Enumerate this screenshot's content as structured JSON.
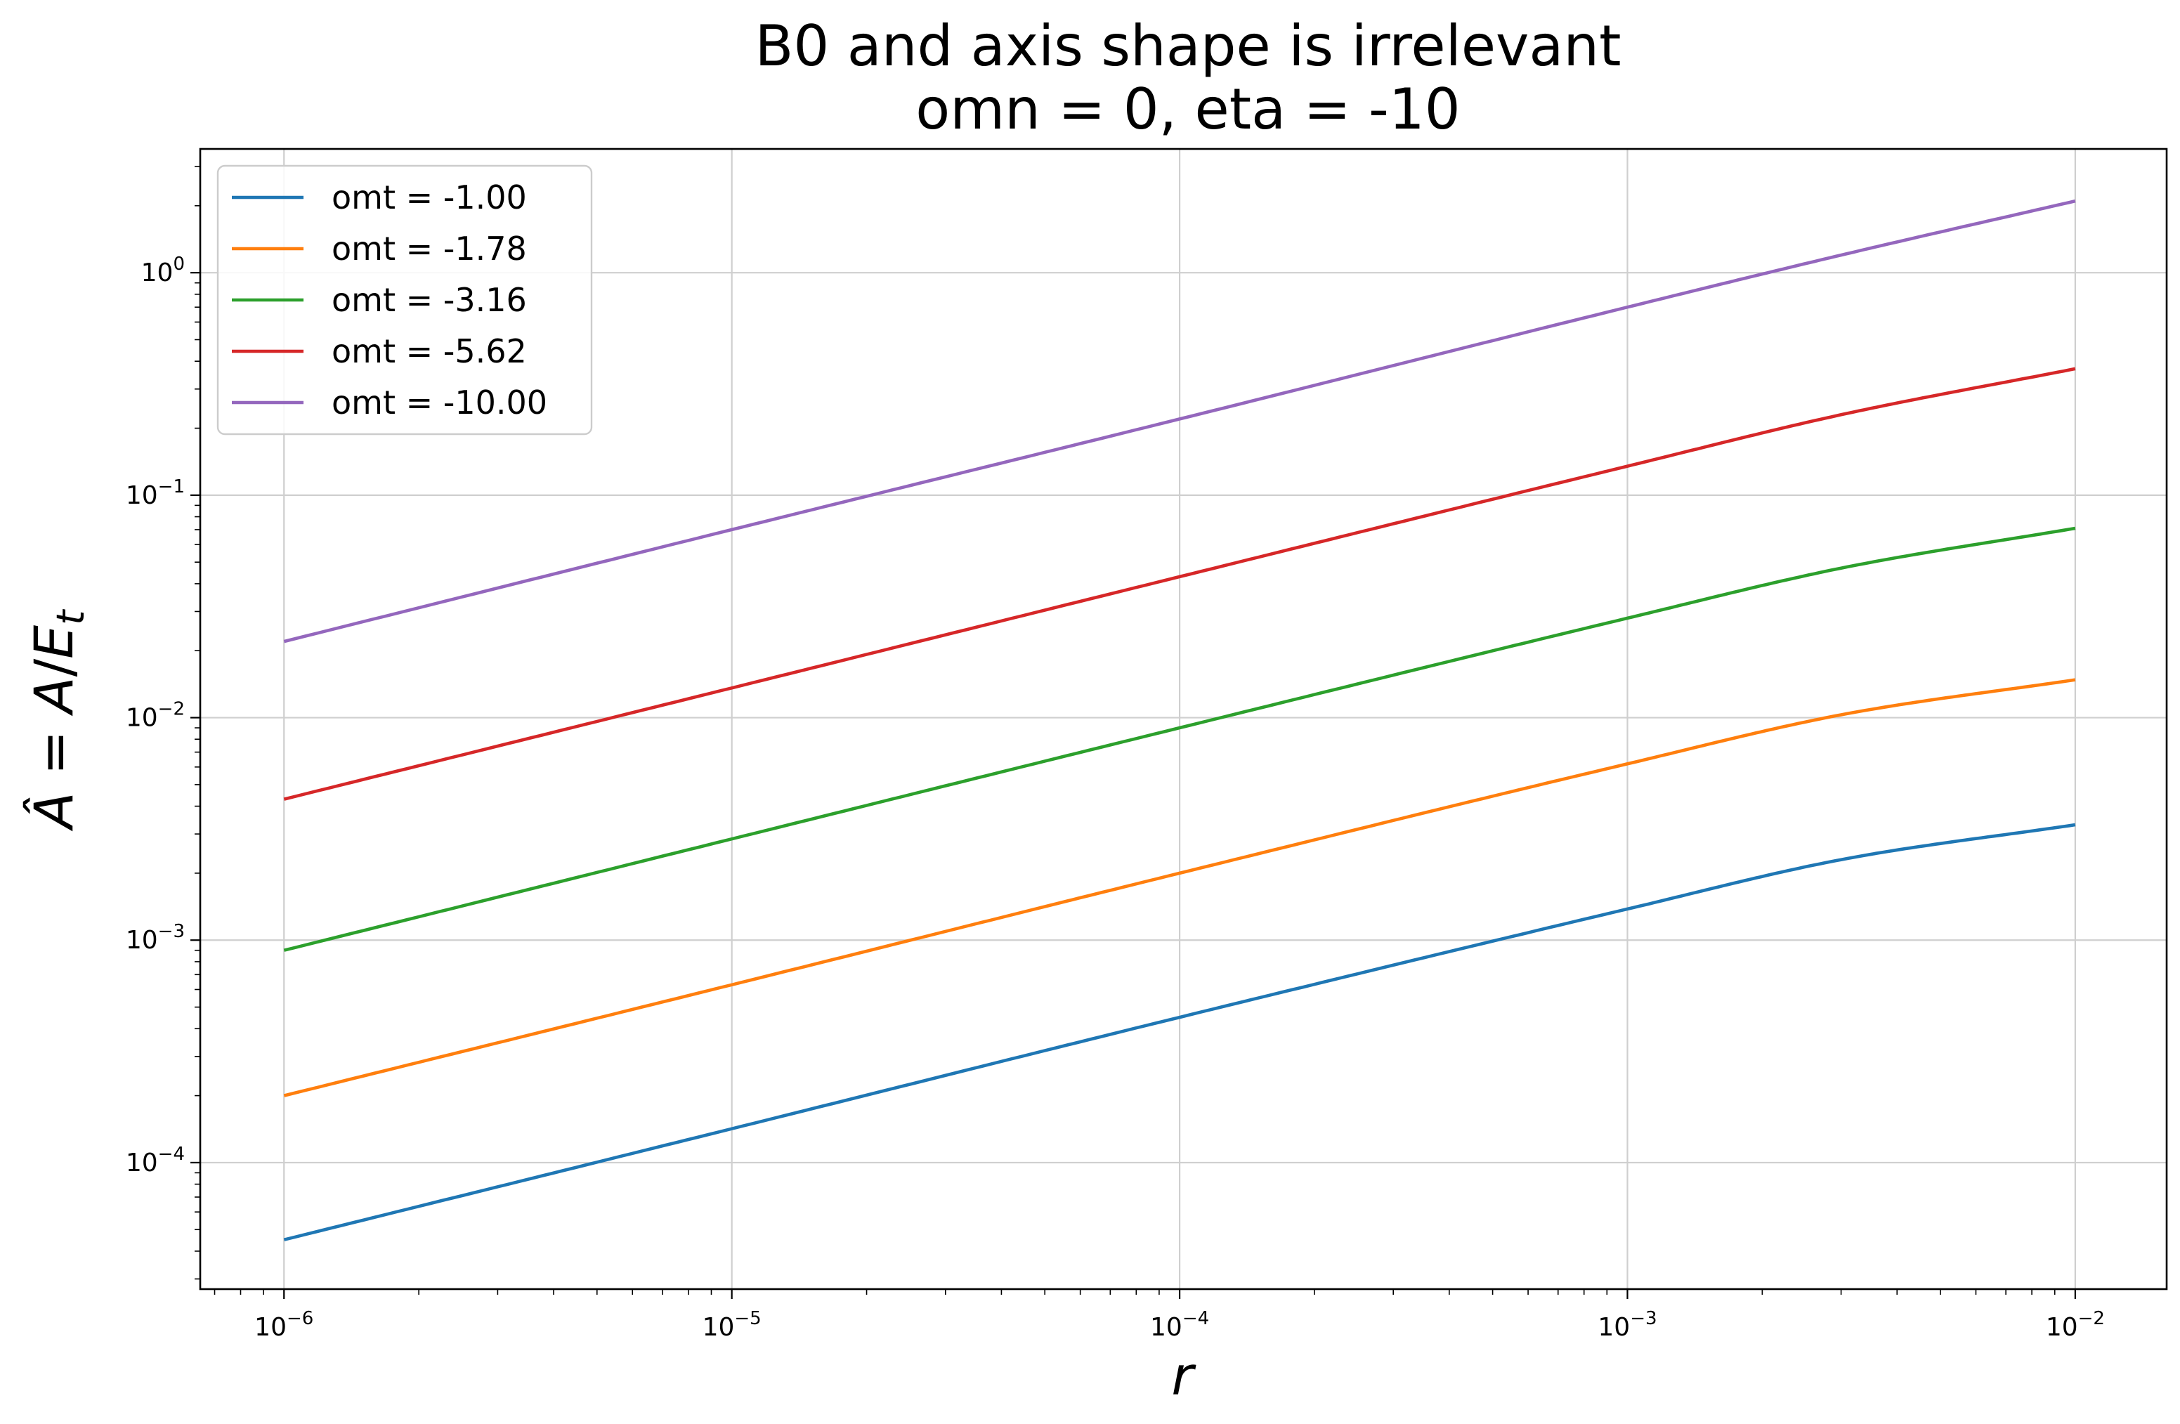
{
  "chart_data": {
    "type": "line",
    "title": "B0 and axis shape is irrelevant",
    "subtitle": "omn = 0, eta = -10",
    "xlabel": "r",
    "ylabel": "Â = A/E_t",
    "x_scale": "log",
    "y_scale": "log",
    "xlim": [
      6.5e-07,
      0.016
    ],
    "ylim": [
      2.7e-05,
      3.6
    ],
    "grid": true,
    "legend_position": "top-left",
    "x_ticks": [
      {
        "base": "10",
        "exp": "−6",
        "value": 1e-06
      },
      {
        "base": "10",
        "exp": "−5",
        "value": 1e-05
      },
      {
        "base": "10",
        "exp": "−4",
        "value": 0.0001
      },
      {
        "base": "10",
        "exp": "−3",
        "value": 0.001
      },
      {
        "base": "10",
        "exp": "−2",
        "value": 0.01
      }
    ],
    "y_ticks": [
      {
        "base": "10",
        "exp": "−4",
        "value": 0.0001
      },
      {
        "base": "10",
        "exp": "−3",
        "value": 0.001
      },
      {
        "base": "10",
        "exp": "−2",
        "value": 0.01
      },
      {
        "base": "10",
        "exp": "−1",
        "value": 0.1
      },
      {
        "base": "10",
        "exp": "0",
        "value": 1
      }
    ],
    "series": [
      {
        "name": "omt = -1.00",
        "color": "#1f77b4",
        "x": [
          1e-06,
          1e-05,
          0.0001,
          0.001,
          0.003,
          0.01
        ],
        "y": [
          4.5e-05,
          0.000142,
          0.00045,
          0.00138,
          0.0023,
          0.0033
        ]
      },
      {
        "name": "omt = -1.78",
        "color": "#ff7f0e",
        "x": [
          1e-06,
          1e-05,
          0.0001,
          0.001,
          0.003,
          0.01
        ],
        "y": [
          0.0002,
          0.00063,
          0.002,
          0.0062,
          0.0103,
          0.0148
        ]
      },
      {
        "name": "omt = -3.16",
        "color": "#2ca02c",
        "x": [
          1e-06,
          1e-05,
          0.0001,
          0.001,
          0.003,
          0.01
        ],
        "y": [
          0.0009,
          0.00285,
          0.009,
          0.028,
          0.047,
          0.071
        ]
      },
      {
        "name": "omt = -5.62",
        "color": "#d62728",
        "x": [
          1e-06,
          1e-05,
          0.0001,
          0.001,
          0.003,
          0.01
        ],
        "y": [
          0.0043,
          0.0136,
          0.043,
          0.135,
          0.23,
          0.37
        ]
      },
      {
        "name": "omt = -10.00",
        "color": "#9467bd",
        "x": [
          1e-06,
          1e-05,
          0.0001,
          0.001,
          0.003,
          0.01
        ],
        "y": [
          0.022,
          0.07,
          0.22,
          0.7,
          1.2,
          2.1
        ]
      }
    ]
  }
}
